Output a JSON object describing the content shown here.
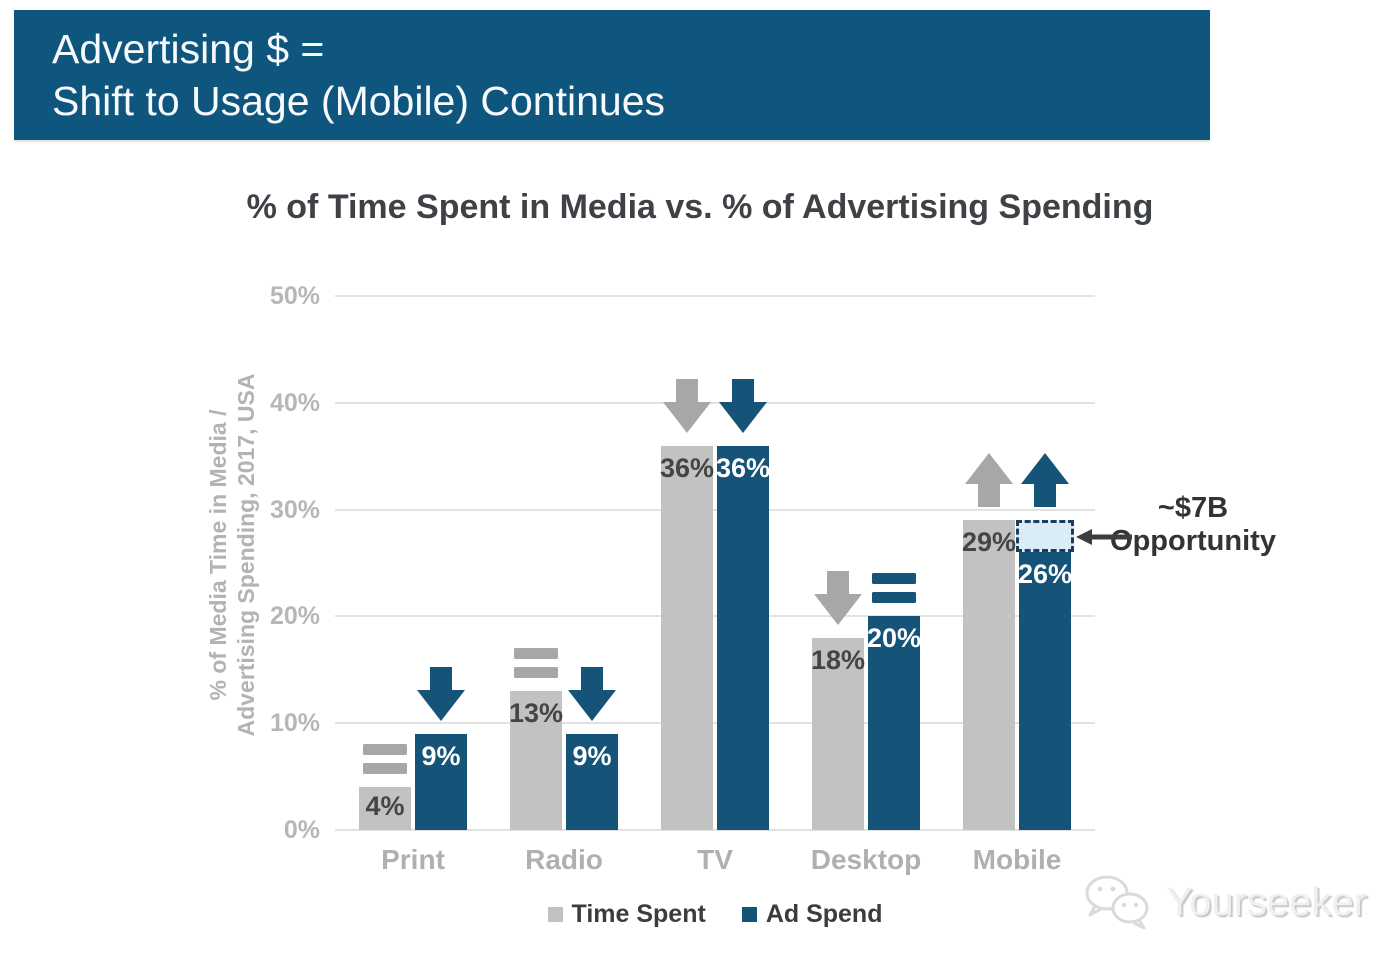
{
  "header": {
    "title_line1": "Advertising $ =",
    "title_line2": "Shift to Usage (Mobile) Continues",
    "bg_color": "#0e567e"
  },
  "watermark": {
    "brand": "Yourseeker"
  },
  "chart_data": {
    "type": "bar",
    "title": "% of Time Spent in Media vs. % of Advertising Spending",
    "ylabel_lines": [
      "% of Media Time in Media /",
      "Advertising Spending, 2017, USA"
    ],
    "categories": [
      "Print",
      "Radio",
      "TV",
      "Desktop",
      "Mobile"
    ],
    "series": [
      {
        "name": "Time Spent",
        "color": "#c2c2c2",
        "icon_color": "#a7a7a7",
        "label_color": "#454545",
        "values": [
          4,
          13,
          36,
          18,
          29
        ],
        "value_labels": [
          "4%",
          "13%",
          "36%",
          "18%",
          "29%"
        ],
        "trends": [
          "flat",
          "flat",
          "down",
          "down",
          "up"
        ]
      },
      {
        "name": "Ad Spend",
        "color": "#155379",
        "icon_color": "#155379",
        "label_color": "#ffffff",
        "values": [
          9,
          9,
          36,
          20,
          26
        ],
        "value_labels": [
          "9%",
          "9%",
          "36%",
          "20%",
          "26%"
        ],
        "trends": [
          "down",
          "down",
          "down",
          "flat",
          "up"
        ]
      }
    ],
    "ylim": [
      0,
      50
    ],
    "ytick_labels": [
      "50%",
      "40%",
      "30%",
      "20%",
      "10%",
      "0%"
    ],
    "grid": "horizontal gridlines every 10%",
    "legend": [
      "Time Spent",
      "Ad Spend"
    ],
    "legend_position": "bottom center",
    "annotation": {
      "label_line1": "~$7B",
      "label_line2": "Opportunity",
      "target": "gap above Mobile Ad Spend bar",
      "box_from_value": 26,
      "box_to_value": 29,
      "box_fill": "#d9ecf8",
      "box_border": "#1c3e5e",
      "arrow_color": "#3d3d3d"
    }
  }
}
